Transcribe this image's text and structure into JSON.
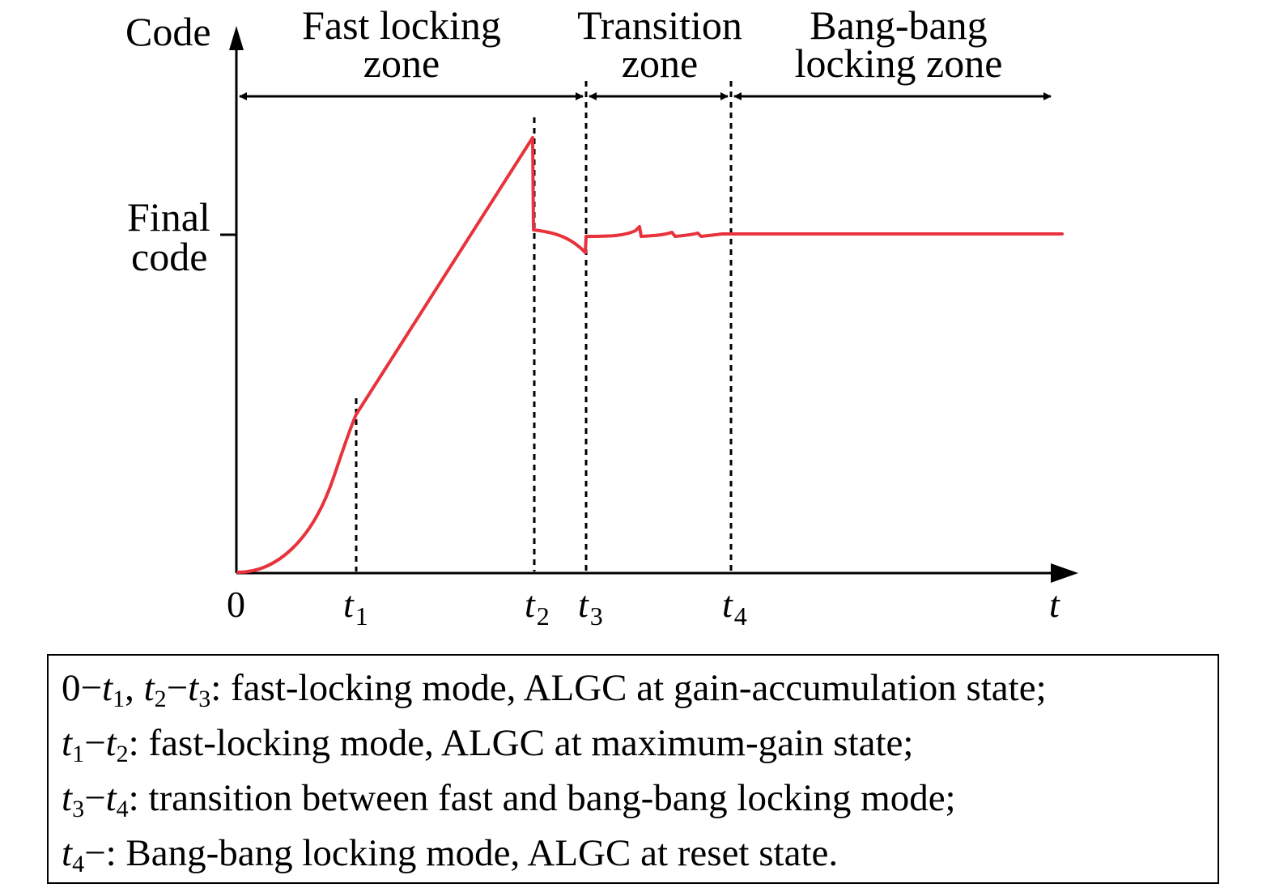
{
  "y_axis_label": "Code",
  "x_axis_label": "t",
  "origin_label": "0",
  "final_code_label": {
    "line1": "Final",
    "line2": "code"
  },
  "zones": [
    {
      "line1": "Fast locking",
      "line2": "zone"
    },
    {
      "line1": "Transition",
      "line2": "zone"
    },
    {
      "line1": "Bang-bang",
      "line2": "locking zone"
    }
  ],
  "time_markers": [
    {
      "base": "t",
      "sub": "1"
    },
    {
      "base": "t",
      "sub": "2"
    },
    {
      "base": "t",
      "sub": "3"
    },
    {
      "base": "t",
      "sub": "4"
    }
  ],
  "curve_color": "#e8323c",
  "legend": [
    {
      "parts": [
        [
          "",
          "0−"
        ],
        [
          "t",
          "1"
        ],
        [
          "",
          ", "
        ],
        [
          "t",
          "2"
        ],
        [
          "",
          "−"
        ],
        [
          "t",
          "3"
        ],
        [
          "",
          ": fast-locking mode, ALGC at gain-accumulation state;"
        ]
      ]
    },
    {
      "parts": [
        [
          "t",
          "1"
        ],
        [
          "",
          "−"
        ],
        [
          "t",
          "2"
        ],
        [
          "",
          ": fast-locking mode, ALGC at maximum-gain state;"
        ]
      ]
    },
    {
      "parts": [
        [
          "t",
          "3"
        ],
        [
          "",
          "−"
        ],
        [
          "t",
          "4"
        ],
        [
          "",
          ": transition between fast and bang-bang locking mode;"
        ]
      ]
    },
    {
      "parts": [
        [
          "t",
          "4"
        ],
        [
          "",
          "−: Bang-bang locking mode, ALGC at reset state."
        ]
      ]
    }
  ]
}
